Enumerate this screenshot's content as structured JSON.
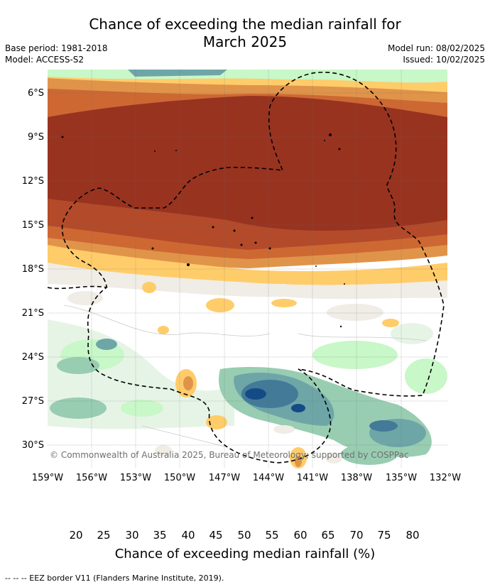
{
  "title_line1": "Chance of exceeding the median rainfall for",
  "title_line2": "March 2025",
  "base_period": "Base period: 1981-2018",
  "model": "Model: ACCESS-S2",
  "model_run": "Model run: 08/02/2025",
  "issued": "Issued: 10/02/2025",
  "lat_labels": [
    "6°S",
    "9°S",
    "12°S",
    "15°S",
    "18°S",
    "21°S",
    "24°S",
    "27°S",
    "30°S"
  ],
  "lon_labels": [
    "159°W",
    "156°W",
    "153°W",
    "150°W",
    "147°W",
    "144°W",
    "141°W",
    "138°W",
    "135°W",
    "132°W"
  ],
  "copyright": "© Commonwealth of Australia 2025, Bureau of Meteorology; supported by COSPPac",
  "colorbar": {
    "ticks": [
      "20",
      "25",
      "30",
      "35",
      "40",
      "45",
      "50",
      "55",
      "60",
      "65",
      "70",
      "75",
      "80"
    ],
    "title": "Chance of exceeding median rainfall (%)",
    "colors": [
      "#983320",
      "#b34a2a",
      "#cd6833",
      "#e0944a",
      "#ffcc6a",
      "#f0ece6",
      "#ffffff",
      "#ffffff",
      "#e6f4e6",
      "#c8f7c8",
      "#98cdb2",
      "#6ea6a8",
      "#437a98",
      "#144b86"
    ]
  },
  "footnote": "-- -- -- EEZ border V11 (Flanders Marine Institute, 2019)."
}
